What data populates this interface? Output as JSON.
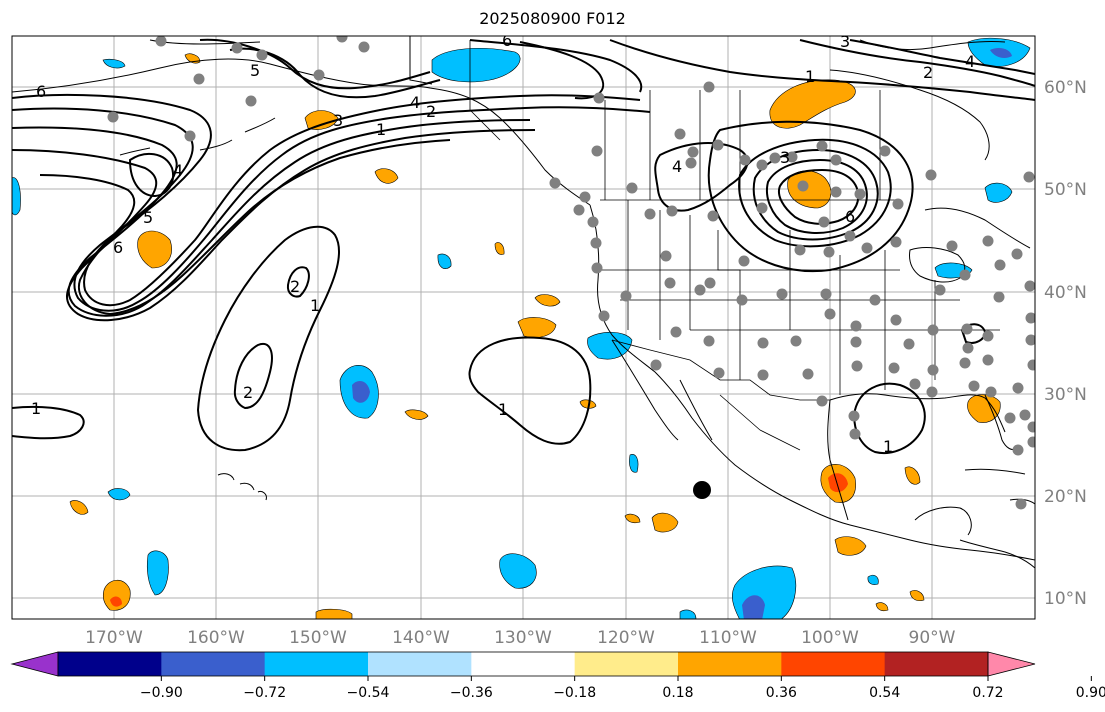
{
  "title": "2025080900 F012",
  "map": {
    "longitude_labels": [
      "170°W",
      "160°W",
      "150°W",
      "140°W",
      "130°W",
      "120°W",
      "110°W",
      "100°W",
      "90°W"
    ],
    "latitude_labels": [
      "60°N",
      "50°N",
      "40°N",
      "30°N",
      "20°N",
      "10°N"
    ],
    "contour_labels": [
      "6",
      "5",
      "4",
      "3",
      "2",
      "1"
    ]
  },
  "colorbar": {
    "ticks": [
      "−0.90",
      "−0.72",
      "−0.54",
      "−0.36",
      "−0.18",
      "0.18",
      "0.36",
      "0.54",
      "0.72",
      "0.90"
    ],
    "colors": [
      "#9932cc",
      "#00008b",
      "#3a5fcd",
      "#00bfff",
      "#b0e2ff",
      "#ffffff",
      "#ffec8b",
      "#ffa500",
      "#ff4500",
      "#b22222",
      "#ff88aa"
    ]
  },
  "chart_data": {
    "type": "map",
    "title": "2025080900 F012",
    "projection": "PlateCarree",
    "lon_range": [
      -180,
      -80
    ],
    "lat_range": [
      8,
      65
    ],
    "contour_levels": [
      1,
      2,
      3,
      4,
      5,
      6
    ],
    "fill_levels": [
      -0.9,
      -0.72,
      -0.54,
      -0.36,
      -0.18,
      0.18,
      0.36,
      0.54,
      0.72,
      0.9
    ],
    "marker": {
      "lon": -112,
      "lat": 20.5,
      "label": ""
    }
  }
}
